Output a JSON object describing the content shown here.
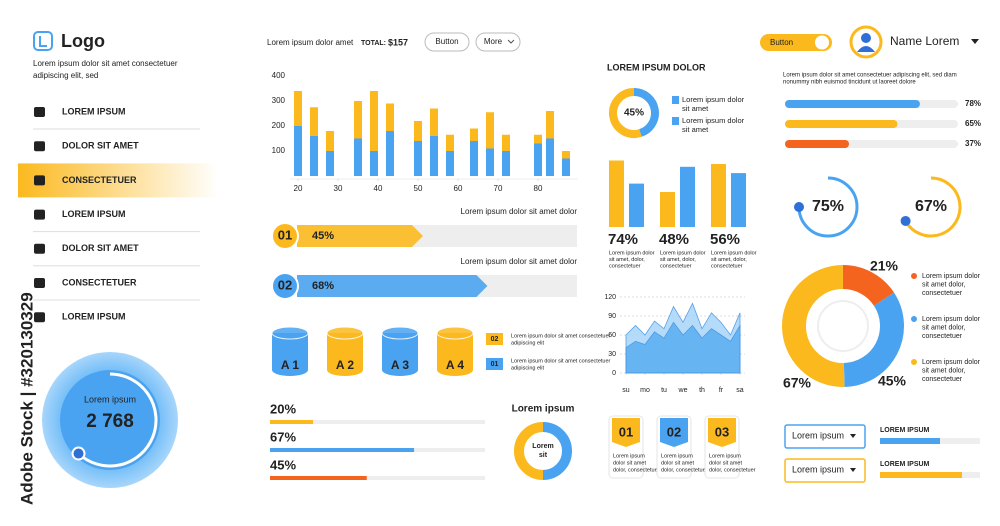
{
  "watermark": "Adobe Stock | #320130329",
  "sidebar": {
    "logo": "Logo",
    "description": [
      "Lorem ipsum dolor sit amet consectetuer",
      "adipiscing elit, sed"
    ],
    "menu": [
      "LOREM IPSUM",
      "DOLOR SIT AMET",
      "CONSECTETUER",
      "LOREM IPSUM",
      "DOLOR SIT AMET",
      "CONSECTETUER",
      "LOREM IPSUM"
    ],
    "active": 2,
    "dial": {
      "label": "Lorem ipsum",
      "value": "2 768"
    }
  },
  "header": {
    "text": "Lorem ipsum dolor amet",
    "total_label": "TOTAL:",
    "total": "$157",
    "buttons": [
      "Button",
      "More"
    ],
    "toggle": "Button",
    "user": "Name Lorem"
  },
  "bar_chart": {
    "type": "bar",
    "x": [
      20,
      24,
      28,
      35,
      39,
      43,
      50,
      54,
      58,
      64,
      68,
      72,
      80,
      83,
      87
    ],
    "series": [
      {
        "color": "#4aa3f0",
        "values": [
          200,
          160,
          100,
          150,
          100,
          180,
          140,
          160,
          100,
          140,
          110,
          100,
          130,
          150,
          70
        ]
      },
      {
        "color": "#fbb91e",
        "values": [
          140,
          115,
          80,
          150,
          240,
          110,
          80,
          110,
          65,
          50,
          145,
          65,
          35,
          110,
          30
        ]
      }
    ],
    "xlim": [
      18,
      90
    ],
    "xticks": [
      20,
      30,
      40,
      50,
      60,
      70,
      80
    ],
    "ylim": [
      0,
      400
    ],
    "yticks": [
      100,
      200,
      300,
      400
    ]
  },
  "steps": [
    {
      "number": "01",
      "value": 45,
      "label": "45%",
      "caption": "Lorem ipsum dolor sit amet dolor",
      "color": "#fbb91e"
    },
    {
      "number": "02",
      "value": 68,
      "label": "68%",
      "caption": "Lorem ipsum dolor sit amet dolor",
      "color": "#4aa3f0"
    }
  ],
  "cylinders": [
    "A 1",
    "A 2",
    "A 3",
    "A 4"
  ],
  "cylinder_legend": [
    {
      "number": "02",
      "color": "#fbb91e",
      "text": [
        "Lorem ipsum dolor sit amet consectetuer",
        "adipiscing elit"
      ]
    },
    {
      "number": "01",
      "color": "#4aa3f0",
      "text": [
        "Lorem ipsum dolor sit amet consectetuer",
        "adipiscing elit"
      ]
    }
  ],
  "bottom_bars": [
    {
      "value": 20,
      "label": "20%",
      "color": "#fbb91e"
    },
    {
      "value": 67,
      "label": "67%",
      "color": "#4aa3f0"
    },
    {
      "value": 45,
      "label": "45%",
      "color": "#f5641e"
    }
  ],
  "small_donut": {
    "title": "Lorem ipsum",
    "center": [
      "Lorem",
      "sit"
    ]
  },
  "mid": {
    "title": "LOREM IPSUM DOLOR",
    "donut": {
      "value": 45,
      "label": "45%"
    },
    "legend": [
      [
        "Lorem ipsum dolor",
        "sit amet"
      ],
      [
        "Lorem ipsum dolor",
        "sit amet"
      ]
    ]
  },
  "pair_chart": {
    "ylim": [
      0,
      100
    ],
    "colors": [
      "#fbb91e",
      "#4aa3f0"
    ],
    "groups": [
      {
        "values": [
          95,
          62
        ],
        "label": "74%",
        "caption": [
          "Lorem ipsum dolor",
          "sit amet, dolor,",
          "consectetuer"
        ]
      },
      {
        "values": [
          50,
          86
        ],
        "label": "48%",
        "caption": [
          "Lorem ipsum dolor",
          "sit amet, dolor,",
          "consectetuer"
        ]
      },
      {
        "values": [
          90,
          77
        ],
        "label": "56%",
        "caption": [
          "Lorem ipsum dolor",
          "sit amet, dolor,",
          "consectetuer"
        ]
      }
    ]
  },
  "area_chart": {
    "type": "area",
    "x": [
      0,
      0.5,
      1,
      1.5,
      2,
      2.5,
      3,
      3.5,
      4,
      4.5,
      5,
      5.5,
      6
    ],
    "series": [
      {
        "color": "#a9d5fb",
        "values": [
          60,
          75,
          60,
          82,
          70,
          105,
          80,
          110,
          70,
          95,
          80,
          60,
          95
        ]
      },
      {
        "color": "#5aaef2",
        "values": [
          40,
          50,
          45,
          65,
          55,
          80,
          60,
          75,
          55,
          70,
          60,
          50,
          75
        ]
      }
    ],
    "xlim": [
      0,
      6
    ],
    "xticks": [
      {
        "value": 0,
        "label": "su"
      },
      {
        "value": 1,
        "label": "mo"
      },
      {
        "value": 2,
        "label": "tu"
      },
      {
        "value": 3,
        "label": "we"
      },
      {
        "value": 4,
        "label": "th"
      },
      {
        "value": 5,
        "label": "fr"
      },
      {
        "value": 6,
        "label": "sa"
      }
    ],
    "ylim": [
      0,
      120
    ],
    "yticks": [
      0,
      30,
      60,
      90,
      120
    ]
  },
  "badges": [
    {
      "number": "01",
      "color": "#fbb91e",
      "text": [
        "Lorem ipsum",
        "dolor sit amet",
        "dolor, consectetuer"
      ]
    },
    {
      "number": "02",
      "color": "#4aa3f0",
      "text": [
        "Lorem ipsum",
        "dolor sit amet",
        "dolor, consectetuer"
      ]
    },
    {
      "number": "03",
      "color": "#fbb91e",
      "text": [
        "Lorem ipsum",
        "dolor sit amet",
        "dolor, consectetuer"
      ]
    }
  ],
  "right": {
    "text": [
      "Lorem ipsum dolor sit amet consectetuer adipiscing elit, sed diam",
      "nonummy nibh euismod tincidunt ut laoreet dolore"
    ],
    "progress": [
      {
        "value": 78,
        "label": "78%",
        "color": "#4aa3f0"
      },
      {
        "value": 65,
        "label": "65%",
        "color": "#fbb91e"
      },
      {
        "value": 37,
        "label": "37%",
        "color": "#f5641e"
      }
    ],
    "rings": [
      {
        "value": 75,
        "label": "75%",
        "color": "#4aa3f0"
      },
      {
        "value": 67,
        "label": "67%",
        "color": "#fbb91e"
      }
    ],
    "donut": {
      "segments": [
        {
          "value": 21,
          "label": "21%",
          "color": "#f5641e"
        },
        {
          "value": 45,
          "label": "45%",
          "color": "#4aa3f0"
        },
        {
          "value": 67,
          "label": "67%",
          "color": "#fbb91e"
        }
      ],
      "legend": [
        [
          "Lorem ipsum dolor",
          "sit amet dolor,",
          "consectetuer"
        ],
        [
          "Lorem ipsum dolor",
          "sit amet dolor,",
          "consectetuer"
        ],
        [
          "Lorem ipsum dolor",
          "sit amet dolor,",
          "consectetuer"
        ]
      ]
    },
    "dropdowns": [
      {
        "text": "Lorem ipsum",
        "label": "LOREM IPSUM",
        "value": 60,
        "color": "#4aa3f0"
      },
      {
        "text": "Lorem ipsum",
        "label": "LOREM IPSUM",
        "value": 82,
        "color": "#fbb91e"
      }
    ]
  }
}
